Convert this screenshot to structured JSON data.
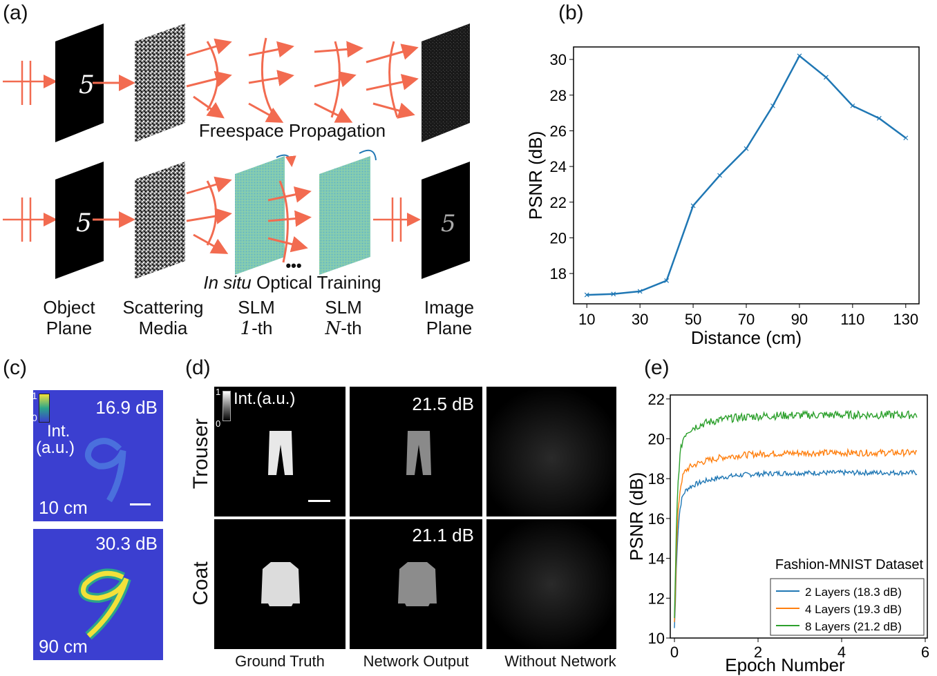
{
  "panels": {
    "a": "(a)",
    "b": "(b)",
    "c": "(c)",
    "d": "(d)",
    "e": "(e)"
  },
  "panel_a": {
    "freespace_label": "Freespace Propagation",
    "insitu_italic": "In situ",
    "insitu_rest": " Optical Training",
    "ellipsis": "•••",
    "digit": "5",
    "captions": {
      "object": [
        "Object",
        "Plane"
      ],
      "scattering": [
        "Scattering",
        "Media"
      ],
      "slm1": [
        "SLM",
        "1",
        "-th"
      ],
      "slmN": [
        "SLM",
        "N",
        "-th"
      ],
      "image": [
        "Image",
        "Plane"
      ]
    }
  },
  "panel_c": {
    "top": {
      "value": "16.9 dB",
      "distance": "10 cm"
    },
    "bottom": {
      "value": "30.3 dB",
      "distance": "90 cm"
    },
    "colorbar": {
      "max": "1",
      "min": "0",
      "label1": "Int.",
      "label2": "(a.u.)"
    },
    "colors": {
      "background": "#3b3fd0",
      "low": "#3a3fcf",
      "high": "#f2e13a"
    }
  },
  "panel_d": {
    "rows": [
      "Trouser",
      "Coat"
    ],
    "columns": [
      "Ground Truth",
      "Network Output",
      "Without Network"
    ],
    "values": [
      "21.5 dB",
      "21.1 dB"
    ],
    "colorbar": {
      "max": "1",
      "min": "0",
      "label": "Int.(a.u.)"
    }
  },
  "chart_data": [
    {
      "type": "line",
      "panel": "(b)",
      "title": "",
      "xlabel": "Distance (cm)",
      "ylabel": "PSNR (dB)",
      "x": [
        10,
        20,
        30,
        40,
        50,
        60,
        70,
        80,
        90,
        100,
        110,
        120,
        130
      ],
      "series": [
        {
          "name": "PSNR",
          "color": "#1f77b4",
          "values": [
            16.8,
            16.85,
            17.0,
            17.6,
            21.8,
            23.5,
            25.0,
            27.4,
            30.2,
            29.0,
            27.4,
            26.7,
            25.6
          ]
        }
      ],
      "xticks": [
        "10",
        "30",
        "50",
        "70",
        "90",
        "110",
        "130"
      ],
      "yticks": [
        "18",
        "20",
        "22",
        "24",
        "26",
        "28",
        "30"
      ],
      "xlim": [
        5,
        135
      ],
      "ylim": [
        16.3,
        30.7
      ]
    },
    {
      "type": "line",
      "panel": "(e)",
      "title": "Fashion-MNIST Dataset",
      "xlabel": "Epoch Number",
      "ylabel": "PSNR (dB)",
      "xticks": [
        "0",
        "2",
        "4",
        "6"
      ],
      "yticks": [
        "10",
        "12",
        "14",
        "16",
        "18",
        "20",
        "22"
      ],
      "xlim": [
        -0.1,
        6.05
      ],
      "ylim": [
        10,
        22.2
      ],
      "series": [
        {
          "name": "2 Layers (18.3 dB)",
          "color": "#1f77b4",
          "plateau": 18.3,
          "start": 10.5,
          "x_end": 5.8
        },
        {
          "name": "4 Layers (19.3 dB)",
          "color": "#ff7f0e",
          "plateau": 19.3,
          "start": 10.8,
          "x_end": 5.8
        },
        {
          "name": "8 Layers (21.2 dB)",
          "color": "#2ca02c",
          "plateau": 21.2,
          "start": 11.0,
          "x_end": 5.8
        }
      ]
    }
  ]
}
